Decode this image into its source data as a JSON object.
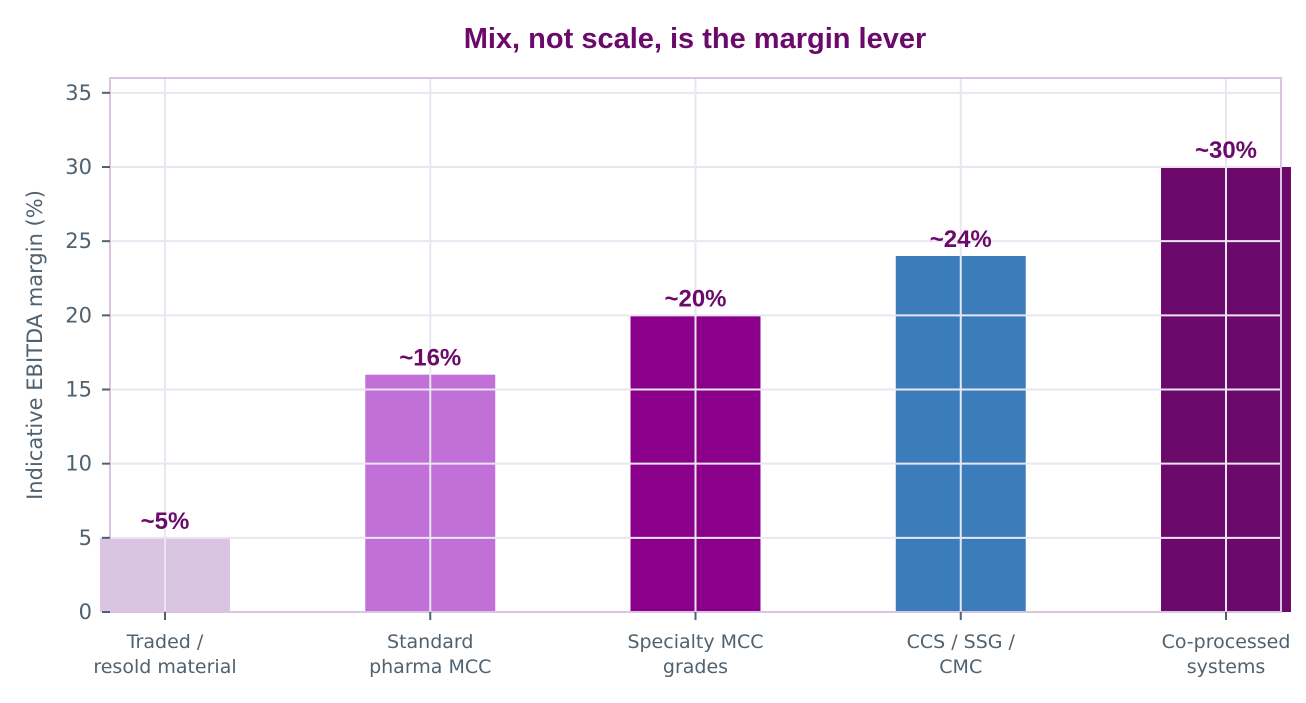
{
  "chart_data": {
    "type": "bar",
    "title": "Mix, not scale, is the margin lever",
    "xlabel": "",
    "ylabel": "Indicative EBITDA margin (%)",
    "ylim": [
      0,
      36
    ],
    "yticks": [
      0,
      5,
      10,
      15,
      20,
      25,
      30,
      35
    ],
    "grid": true,
    "categories": [
      [
        "Traded /",
        "resold material"
      ],
      [
        "Standard",
        "pharma MCC"
      ],
      [
        "Specialty MCC",
        "grades"
      ],
      [
        "CCS / SSG /",
        "CMC"
      ],
      [
        "Co-processed",
        "systems"
      ]
    ],
    "values": [
      5,
      16,
      20,
      24,
      30
    ],
    "data_labels": [
      "~5%",
      "~16%",
      "~20%",
      "~24%",
      "~30%"
    ],
    "colors": [
      "#d9c4e2",
      "#c070d6",
      "#8b008b",
      "#3b7dbb",
      "#6b0a6b"
    ]
  }
}
